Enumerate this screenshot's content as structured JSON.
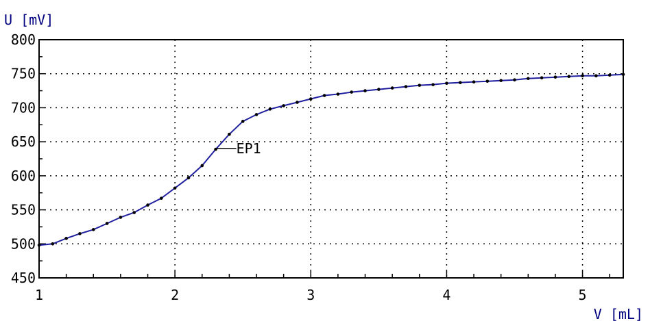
{
  "chart_data": {
    "type": "line",
    "ylabel": "U [mV]",
    "xlabel": "V [mL]",
    "xlim": [
      1,
      5.3
    ],
    "ylim": [
      450,
      800
    ],
    "x_ticks": [
      "1",
      "2",
      "3",
      "4",
      "5"
    ],
    "y_ticks": [
      "800",
      "750",
      "700",
      "650",
      "600",
      "550",
      "500",
      "450"
    ],
    "grid": true,
    "line_color": "#1f1f9f",
    "marker_color": "#000000",
    "series": [
      {
        "x": [
          1.0,
          1.1,
          1.2,
          1.3,
          1.4,
          1.5,
          1.6,
          1.7,
          1.8,
          1.9,
          2.0,
          2.1,
          2.2,
          2.3,
          2.4,
          2.5,
          2.6,
          2.7,
          2.8,
          2.9,
          3.0,
          3.1,
          3.2,
          3.3,
          3.4,
          3.5,
          3.6,
          3.7,
          3.8,
          3.9,
          4.0,
          4.1,
          4.2,
          4.3,
          4.4,
          4.5,
          4.6,
          4.7,
          4.8,
          4.9,
          5.0,
          5.1,
          5.2,
          5.3
        ],
        "y": [
          498,
          500,
          508,
          515,
          521,
          530,
          539,
          546,
          557,
          567,
          582,
          597,
          615,
          639,
          661,
          680,
          690,
          698,
          703,
          708,
          713,
          718,
          720,
          723,
          725,
          727,
          729,
          731,
          733,
          734,
          736,
          737,
          738,
          739,
          740,
          741,
          743,
          744,
          745,
          746,
          747,
          747,
          748,
          749
        ]
      }
    ],
    "annotations": [
      {
        "label": "EP1",
        "x": 2.3,
        "y": 640
      }
    ]
  }
}
